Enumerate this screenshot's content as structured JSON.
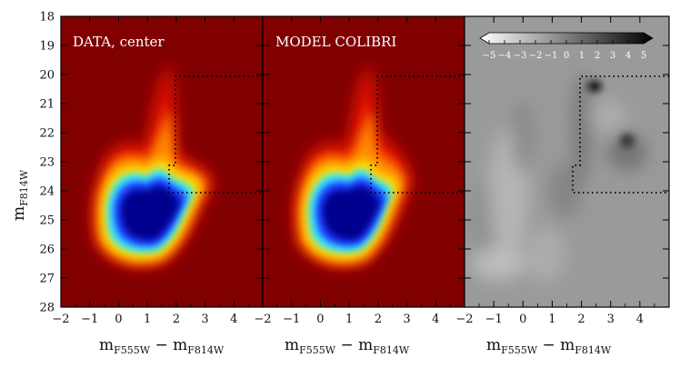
{
  "chart_data": [
    {
      "type": "heatmap",
      "panel_label": "DATA, center",
      "xlabel": "m_F555W − m_F814W",
      "ylabel": "m_F814W",
      "xlim": [
        -2,
        5
      ],
      "ylim": [
        28,
        18
      ],
      "x_ticks": [
        -2,
        -1,
        0,
        1,
        2,
        3,
        4
      ],
      "y_ticks": [
        18,
        19,
        20,
        21,
        22,
        23,
        24,
        25,
        26,
        27,
        28
      ],
      "colormap": "jet",
      "background": "#800000",
      "selection_box": [
        [
          5,
          20
        ],
        [
          2.0,
          20
        ],
        [
          2.0,
          23.3
        ],
        [
          1.75,
          23.3
        ],
        [
          1.75,
          24
        ],
        [
          5,
          24
        ]
      ]
    },
    {
      "type": "heatmap",
      "panel_label": "MODEL COLIBRI",
      "xlabel": "m_F555W − m_F814W",
      "xlim": [
        -2,
        5
      ],
      "ylim": [
        28,
        18
      ],
      "x_ticks": [
        -2,
        -1,
        0,
        1,
        2,
        3,
        4
      ],
      "colormap": "jet",
      "background": "#800000",
      "selection_box": [
        [
          5,
          20
        ],
        [
          2.0,
          20
        ],
        [
          2.0,
          23.3
        ],
        [
          1.75,
          23.3
        ],
        [
          1.75,
          24
        ],
        [
          5,
          24
        ]
      ]
    },
    {
      "type": "heatmap",
      "panel_label": "",
      "xlabel": "m_F555W − m_F814W",
      "xlim": [
        -2,
        5
      ],
      "ylim": [
        28,
        18
      ],
      "x_ticks": [
        -2,
        -1,
        0,
        1,
        2,
        3,
        4
      ],
      "colormap": "gray",
      "background": "#9a9a9a",
      "colorbar": {
        "range": [
          -5,
          5
        ],
        "tick_labels": [
          "−5",
          "−4",
          "−3",
          "−2",
          "−1",
          "0",
          "1",
          "2",
          "3",
          "4",
          "5"
        ],
        "placement": "top-right"
      },
      "selection_box": [
        [
          5,
          20
        ],
        [
          2.0,
          20
        ],
        [
          2.0,
          23.3
        ],
        [
          1.75,
          23.3
        ],
        [
          1.75,
          24
        ],
        [
          5,
          24
        ]
      ]
    }
  ],
  "labels": {
    "panel1": "DATA, center",
    "panel2": "MODEL COLIBRI",
    "x_main": "m",
    "x_sub1": "F555W",
    "x_minus": " − m",
    "x_sub2": "F814W",
    "y_main": "m",
    "y_sub": "F814W"
  }
}
